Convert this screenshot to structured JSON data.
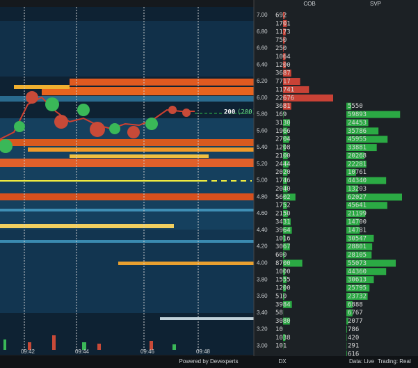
{
  "panel": {
    "headers": {
      "cob": "COB",
      "svp": "SVP"
    },
    "price_labels": [
      "7.00",
      "6.80",
      "6.60",
      "6.40",
      "6.20",
      "6.00",
      "5.80",
      "5.60",
      "5.40",
      "5.20",
      "5.00",
      "4.80",
      "4.60",
      "4.40",
      "4.20",
      "4.00",
      "3.80",
      "3.60",
      "3.40",
      "3.20",
      "3.00"
    ],
    "time_labels": [
      "09:42",
      "09:44",
      "09:46",
      "09:48"
    ],
    "order_label": "200",
    "order_label_total": "(200)",
    "cob_asks": [
      692,
      1701,
      1173,
      750,
      250,
      1064,
      1200,
      3687,
      7717,
      11741,
      22676,
      3681
    ],
    "cob_bids": [
      169,
      3130,
      1966,
      2704,
      1208,
      2100,
      2444,
      2020,
      1746,
      2040,
      5602,
      1752,
      2150,
      3431,
      3964,
      1016,
      3067,
      600,
      8700,
      1000,
      1555,
      1200,
      510,
      3984,
      58,
      3080,
      10,
      1038,
      101
    ],
    "cob_ask_color": "#e8483a",
    "cob_bid_color": "#2ec24a",
    "svp": [
      5550,
      59893,
      24453,
      35786,
      45955,
      33881,
      20268,
      22281,
      10761,
      44340,
      13203,
      62027,
      45641,
      21199,
      14700,
      14781,
      30547,
      28801,
      28105,
      55073,
      44360,
      30613,
      25795,
      23732,
      6888,
      6767,
      2077,
      786,
      420,
      291,
      616
    ],
    "svp_color": "#2ec24a",
    "footer": {
      "powered": "Powered by Devexperts",
      "symbol": "DX",
      "data": "Data: Live",
      "trading": "Trading: Real"
    }
  }
}
